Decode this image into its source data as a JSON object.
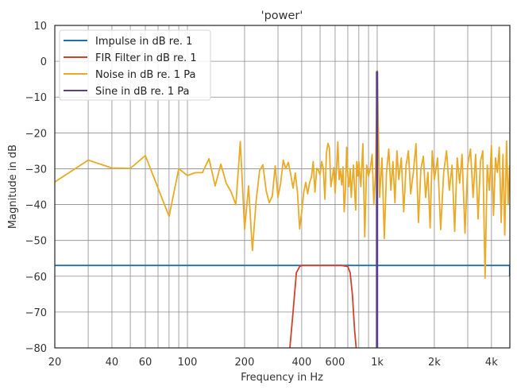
{
  "chart_data": {
    "type": "line",
    "title": "'power'",
    "xlabel": "Frequency in Hz",
    "ylabel": "Magnitude in dB",
    "xscale": "log",
    "xlim": [
      20,
      5000
    ],
    "ylim": [
      -80,
      10
    ],
    "grid": true,
    "legend_position": "upper left",
    "x_ticks": [
      {
        "value": 20,
        "label": "20"
      },
      {
        "value": 40,
        "label": "40"
      },
      {
        "value": 60,
        "label": "60"
      },
      {
        "value": 100,
        "label": "100"
      },
      {
        "value": 200,
        "label": "200"
      },
      {
        "value": 400,
        "label": "400"
      },
      {
        "value": 600,
        "label": "600"
      },
      {
        "value": 1000,
        "label": "1k"
      },
      {
        "value": 2000,
        "label": "2k"
      },
      {
        "value": 4000,
        "label": "4k"
      }
    ],
    "x_grid": [
      20,
      30,
      40,
      50,
      60,
      70,
      80,
      90,
      100,
      200,
      300,
      400,
      500,
      600,
      700,
      800,
      900,
      1000,
      2000,
      3000,
      4000
    ],
    "y_ticks": [
      {
        "value": 10,
        "label": "10"
      },
      {
        "value": 0,
        "label": "0"
      },
      {
        "value": -10,
        "label": "−10"
      },
      {
        "value": -20,
        "label": "−20"
      },
      {
        "value": -30,
        "label": "−30"
      },
      {
        "value": -40,
        "label": "−40"
      },
      {
        "value": -50,
        "label": "−50"
      },
      {
        "value": -60,
        "label": "−60"
      },
      {
        "value": -70,
        "label": "−70"
      },
      {
        "value": -80,
        "label": "−80"
      }
    ],
    "series": [
      {
        "name": "Impulse in dB re. 1",
        "color": "#1f6fae",
        "x": [
          20,
          4990,
          4990
        ],
        "y": [
          -57,
          -57,
          -60
        ]
      },
      {
        "name": "FIR Filter in dB re. 1",
        "color": "#d3412a",
        "x": [
          340,
          360,
          375,
          390,
          400,
          500,
          650,
          700,
          720,
          740,
          760,
          790
        ],
        "y": [
          -85,
          -70,
          -59,
          -57.3,
          -57,
          -57,
          -57,
          -57.3,
          -59,
          -65,
          -75,
          -85
        ]
      },
      {
        "name": "Noise in dB re. 1 Pa",
        "color": "#eaaa25",
        "x": [
          20,
          30,
          40,
          50,
          60,
          80,
          90,
          100,
          110,
          120,
          130,
          140,
          150,
          160,
          170,
          180,
          190,
          200,
          210,
          220,
          230,
          240,
          250,
          260,
          270,
          280,
          290,
          300,
          310,
          320,
          330,
          340,
          350,
          360,
          370,
          380,
          390,
          400,
          410,
          420,
          430,
          440,
          450,
          460,
          470,
          480,
          490,
          500,
          510,
          520,
          530,
          540,
          550,
          560,
          570,
          580,
          590,
          600,
          610,
          620,
          630,
          640,
          650,
          660,
          670,
          680,
          690,
          700,
          710,
          720,
          730,
          740,
          750,
          760,
          770,
          780,
          790,
          800,
          820,
          840,
          860,
          880,
          900,
          920,
          940,
          960,
          980,
          1000,
          1030,
          1060,
          1090,
          1120,
          1150,
          1180,
          1210,
          1240,
          1270,
          1300,
          1340,
          1380,
          1420,
          1460,
          1500,
          1550,
          1600,
          1650,
          1700,
          1750,
          1800,
          1850,
          1900,
          1950,
          2000,
          2080,
          2160,
          2240,
          2320,
          2400,
          2480,
          2560,
          2640,
          2720,
          2800,
          2900,
          3000,
          3100,
          3200,
          3300,
          3400,
          3500,
          3600,
          3700,
          3800,
          3900,
          4000,
          4100,
          4200,
          4300,
          4400,
          4500,
          4600,
          4700,
          4800,
          4900,
          4990
        ],
        "y": [
          -33.7,
          -27.6,
          -29.8,
          -29.9,
          -26.3,
          -43.3,
          -30.0,
          -31.9,
          -31.1,
          -31.1,
          -27.2,
          -34.8,
          -28.7,
          -34.0,
          -36.5,
          -40.0,
          -22.4,
          -46.9,
          -34.8,
          -52.8,
          -39.0,
          -30.5,
          -28.9,
          -36.2,
          -39.5,
          -37.6,
          -29.2,
          -38.0,
          -34.0,
          -27.6,
          -30.0,
          -28.2,
          -31.5,
          -35.4,
          -31.2,
          -36.6,
          -46.8,
          -42.0,
          -36.5,
          -33.8,
          -37.0,
          -33.9,
          -32.4,
          -28.0,
          -36.5,
          -29.9,
          -30.4,
          -31.7,
          -28.0,
          -30.0,
          -38.5,
          -25.7,
          -22.9,
          -24.2,
          -35.0,
          -32.5,
          -29.7,
          -36.8,
          -30.4,
          -22.5,
          -33.0,
          -30.3,
          -34.5,
          -29.5,
          -42.0,
          -36.0,
          -24.0,
          -32.0,
          -35.0,
          -30.0,
          -38.0,
          -33.0,
          -29.0,
          -36.0,
          -41.5,
          -28.0,
          -32.0,
          -28.0,
          -35.0,
          -23.0,
          -49.0,
          -29.0,
          -32.0,
          -30.0,
          -26.0,
          -40.0,
          -31.0,
          -2.5,
          -38.0,
          -27.0,
          -49.5,
          -31.0,
          -24.5,
          -36.0,
          -28.0,
          -39.5,
          -25.0,
          -33.0,
          -27.0,
          -42.0,
          -29.0,
          -25.0,
          -37.0,
          -31.0,
          -23.0,
          -45.0,
          -30.0,
          -26.5,
          -38.0,
          -31.0,
          -46.5,
          -25.0,
          -33.0,
          -27.0,
          -47.0,
          -31.0,
          -25.0,
          -36.0,
          -29.0,
          -47.5,
          -27.0,
          -34.0,
          -26.0,
          -48.0,
          -29.0,
          -24.5,
          -38.0,
          -26.0,
          -44.0,
          -28.0,
          -25.0,
          -60.5,
          -29.0,
          -36.0,
          -23.5,
          -43.0,
          -27.0,
          -31.0,
          -24.0,
          -45.0,
          -26.0,
          -48.5,
          -22.3,
          -40.0,
          -29.0
        ]
      },
      {
        "name": "Sine in dB re. 1 Pa",
        "color": "#5b3f8f",
        "x": [
          995,
          995,
          1000,
          1000
        ],
        "y": [
          -85,
          -3,
          -3,
          -85
        ]
      }
    ]
  },
  "legend": {
    "items": [
      {
        "label": "Impulse in dB re. 1",
        "color": "#1f6fae"
      },
      {
        "label": "FIR Filter in dB re. 1",
        "color": "#d3412a"
      },
      {
        "label": "Noise in dB re. 1 Pa",
        "color": "#eaaa25"
      },
      {
        "label": "Sine in dB re. 1 Pa",
        "color": "#5b3f8f"
      }
    ]
  },
  "colors": {
    "grid": "#8c8c8c",
    "axes": "#262626",
    "text": "#333333",
    "background": "#ffffff"
  }
}
